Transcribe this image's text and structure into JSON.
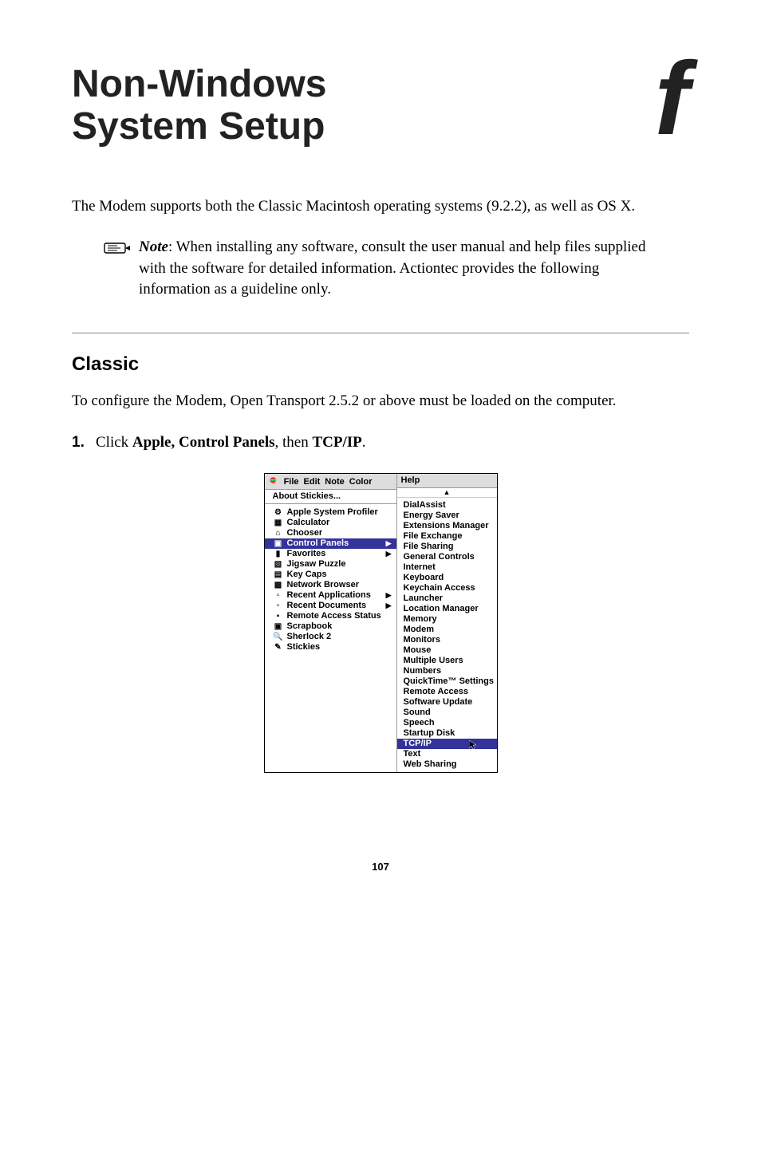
{
  "title_line1": "Non-Windows",
  "title_line2": "System Setup",
  "chapter_letter": "f",
  "intro": "The Modem supports both the Classic Macintosh operating systems (9.2.2), as well as ",
  "intro_sc": "OS X",
  "intro_tail": ".",
  "note_label": "Note",
  "note_body": ": When installing any software, consult the user manual and help files supplied with the software for detailed information. Actiontec provides the following information as a guideline only.",
  "section_head": "Classic",
  "section_body": "To configure the Modem, Open Transport 2.5.2 or above must be loaded on the computer.",
  "step_num": "1.",
  "step_a": "Click ",
  "step_bold1": "Apple, Control Panels",
  "step_b": ", then ",
  "step_bold2_sc": "TCP/IP",
  "step_c": ".",
  "page_number": "107",
  "mac": {
    "menubar": {
      "items": [
        "File",
        "Edit",
        "Note",
        "Color",
        "Help"
      ]
    },
    "about": "About Stickies...",
    "left_items": [
      {
        "icon": "⚙",
        "label": "Apple System Profiler",
        "sub": false
      },
      {
        "icon": "▦",
        "label": "Calculator",
        "sub": false
      },
      {
        "icon": "⌂",
        "label": "Chooser",
        "sub": false
      },
      {
        "icon": "▣",
        "label": "Control Panels",
        "sub": true,
        "selected": true
      },
      {
        "icon": "▮",
        "label": "Favorites",
        "sub": true
      },
      {
        "icon": "▧",
        "label": "Jigsaw Puzzle",
        "sub": false
      },
      {
        "icon": "▤",
        "label": "Key Caps",
        "sub": false
      },
      {
        "icon": "▩",
        "label": "Network Browser",
        "sub": false
      },
      {
        "icon": "▫",
        "label": "Recent Applications",
        "sub": true
      },
      {
        "icon": "▫",
        "label": "Recent Documents",
        "sub": true
      },
      {
        "icon": "▪",
        "label": "Remote Access Status",
        "sub": false
      },
      {
        "icon": "▣",
        "label": "Scrapbook",
        "sub": false
      },
      {
        "icon": "🔍",
        "label": "Sherlock 2",
        "sub": false
      },
      {
        "icon": "✎",
        "label": "Stickies",
        "sub": false
      }
    ],
    "right_items": [
      "DialAssist",
      "Energy Saver",
      "Extensions Manager",
      "File Exchange",
      "File Sharing",
      "General Controls",
      "Internet",
      "Keyboard",
      "Keychain Access",
      "Launcher",
      "Location Manager",
      "Memory",
      "Modem",
      "Monitors",
      "Mouse",
      "Multiple Users",
      "Numbers",
      "QuickTime™ Settings",
      "Remote Access",
      "Software Update",
      "Sound",
      "Speech",
      "Startup Disk"
    ],
    "right_selected": "TCP/IP",
    "right_tail": [
      "Text",
      "Web Sharing"
    ]
  }
}
